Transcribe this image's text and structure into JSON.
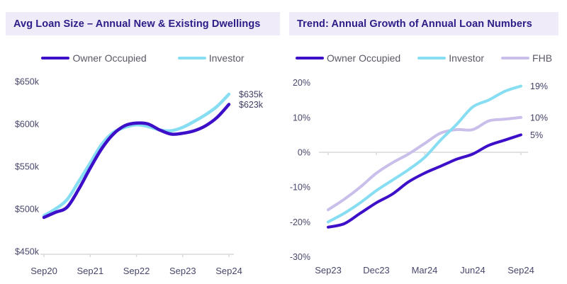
{
  "colors": {
    "header_bg": "#EFEBF9",
    "title_text": "#2B1D87",
    "axis_text": "#47476B",
    "legend_text": "#595966",
    "grid_line": "#D9D9D9",
    "end_label_text": "#3F3F66"
  },
  "chart_data": [
    {
      "type": "line",
      "title": "Avg Loan Size – Annual New & Existing Dwellings",
      "categories": [
        "Sep20",
        "Dec20",
        "Mar21",
        "Jun21",
        "Sep21",
        "Dec21",
        "Mar22",
        "Jun22",
        "Sep22",
        "Dec22",
        "Mar23",
        "Jun23",
        "Sep23",
        "Dec23",
        "Mar24",
        "Jun24",
        "Sep24"
      ],
      "x_tick_labels": [
        "Sep20",
        "Sep21",
        "Sep22",
        "Sep23",
        "Sep24"
      ],
      "y_ticks": [
        {
          "value": 650,
          "label": "$650k"
        },
        {
          "value": 600,
          "label": "$600k"
        },
        {
          "value": 550,
          "label": "$550k"
        },
        {
          "value": 500,
          "label": "$500k"
        },
        {
          "value": 450,
          "label": "$450k"
        }
      ],
      "ylim": [
        450,
        650
      ],
      "grid": false,
      "legend_position": "top",
      "series": [
        {
          "name": "Investor",
          "color": "#87DEF2",
          "values": [
            492,
            500,
            511,
            532,
            554,
            576,
            590,
            596,
            599,
            597,
            593,
            592,
            596,
            603,
            611,
            621,
            635
          ],
          "end_label": "$635k"
        },
        {
          "name": "Owner Occupied",
          "color": "#3D0FC8",
          "values": [
            490,
            496,
            502,
            523,
            548,
            571,
            588,
            598,
            601,
            600,
            593,
            588,
            589,
            592,
            598,
            608,
            623
          ],
          "end_label": "$623k"
        }
      ],
      "legend_order": [
        "Owner Occupied",
        "Investor"
      ]
    },
    {
      "type": "line",
      "title": "Trend: Annual Growth of Annual Loan Numbers",
      "categories": [
        "Sep23",
        "Oct23",
        "Nov23",
        "Dec23",
        "Jan24",
        "Feb24",
        "Mar24",
        "Apr24",
        "May24",
        "Jun24",
        "Jul24",
        "Aug24",
        "Sep24"
      ],
      "x_tick_labels": [
        "Sep23",
        "Dec23",
        "Mar24",
        "Jun24",
        "Sep24"
      ],
      "y_ticks": [
        {
          "value": 20,
          "label": "20%"
        },
        {
          "value": 10,
          "label": "10%"
        },
        {
          "value": 0,
          "label": "0%"
        },
        {
          "value": -10,
          "label": "-10%"
        },
        {
          "value": -20,
          "label": "-20%"
        },
        {
          "value": -30,
          "label": "-30%"
        }
      ],
      "ylim": [
        -30,
        20
      ],
      "grid": false,
      "zero_line": true,
      "legend_position": "top",
      "series": [
        {
          "name": "FHB",
          "color": "#C9BFEA",
          "values": [
            -16.5,
            -13.5,
            -10,
            -6,
            -3,
            -0.5,
            2.5,
            5.5,
            6.5,
            6.5,
            9,
            9.5,
            10
          ],
          "end_label": "10%"
        },
        {
          "name": "Investor",
          "color": "#87DEF2",
          "values": [
            -20,
            -17.5,
            -14.5,
            -11,
            -8,
            -5,
            -1.5,
            3.5,
            8,
            13,
            15,
            17.5,
            19
          ],
          "end_label": "19%"
        },
        {
          "name": "Owner Occupied",
          "color": "#3D0FC8",
          "values": [
            -21.5,
            -20.5,
            -17.5,
            -14.5,
            -12,
            -8.5,
            -6,
            -4,
            -2,
            -0.5,
            2,
            3.5,
            5
          ],
          "end_label": "5%"
        }
      ],
      "legend_order": [
        "Owner Occupied",
        "Investor",
        "FHB"
      ]
    }
  ]
}
